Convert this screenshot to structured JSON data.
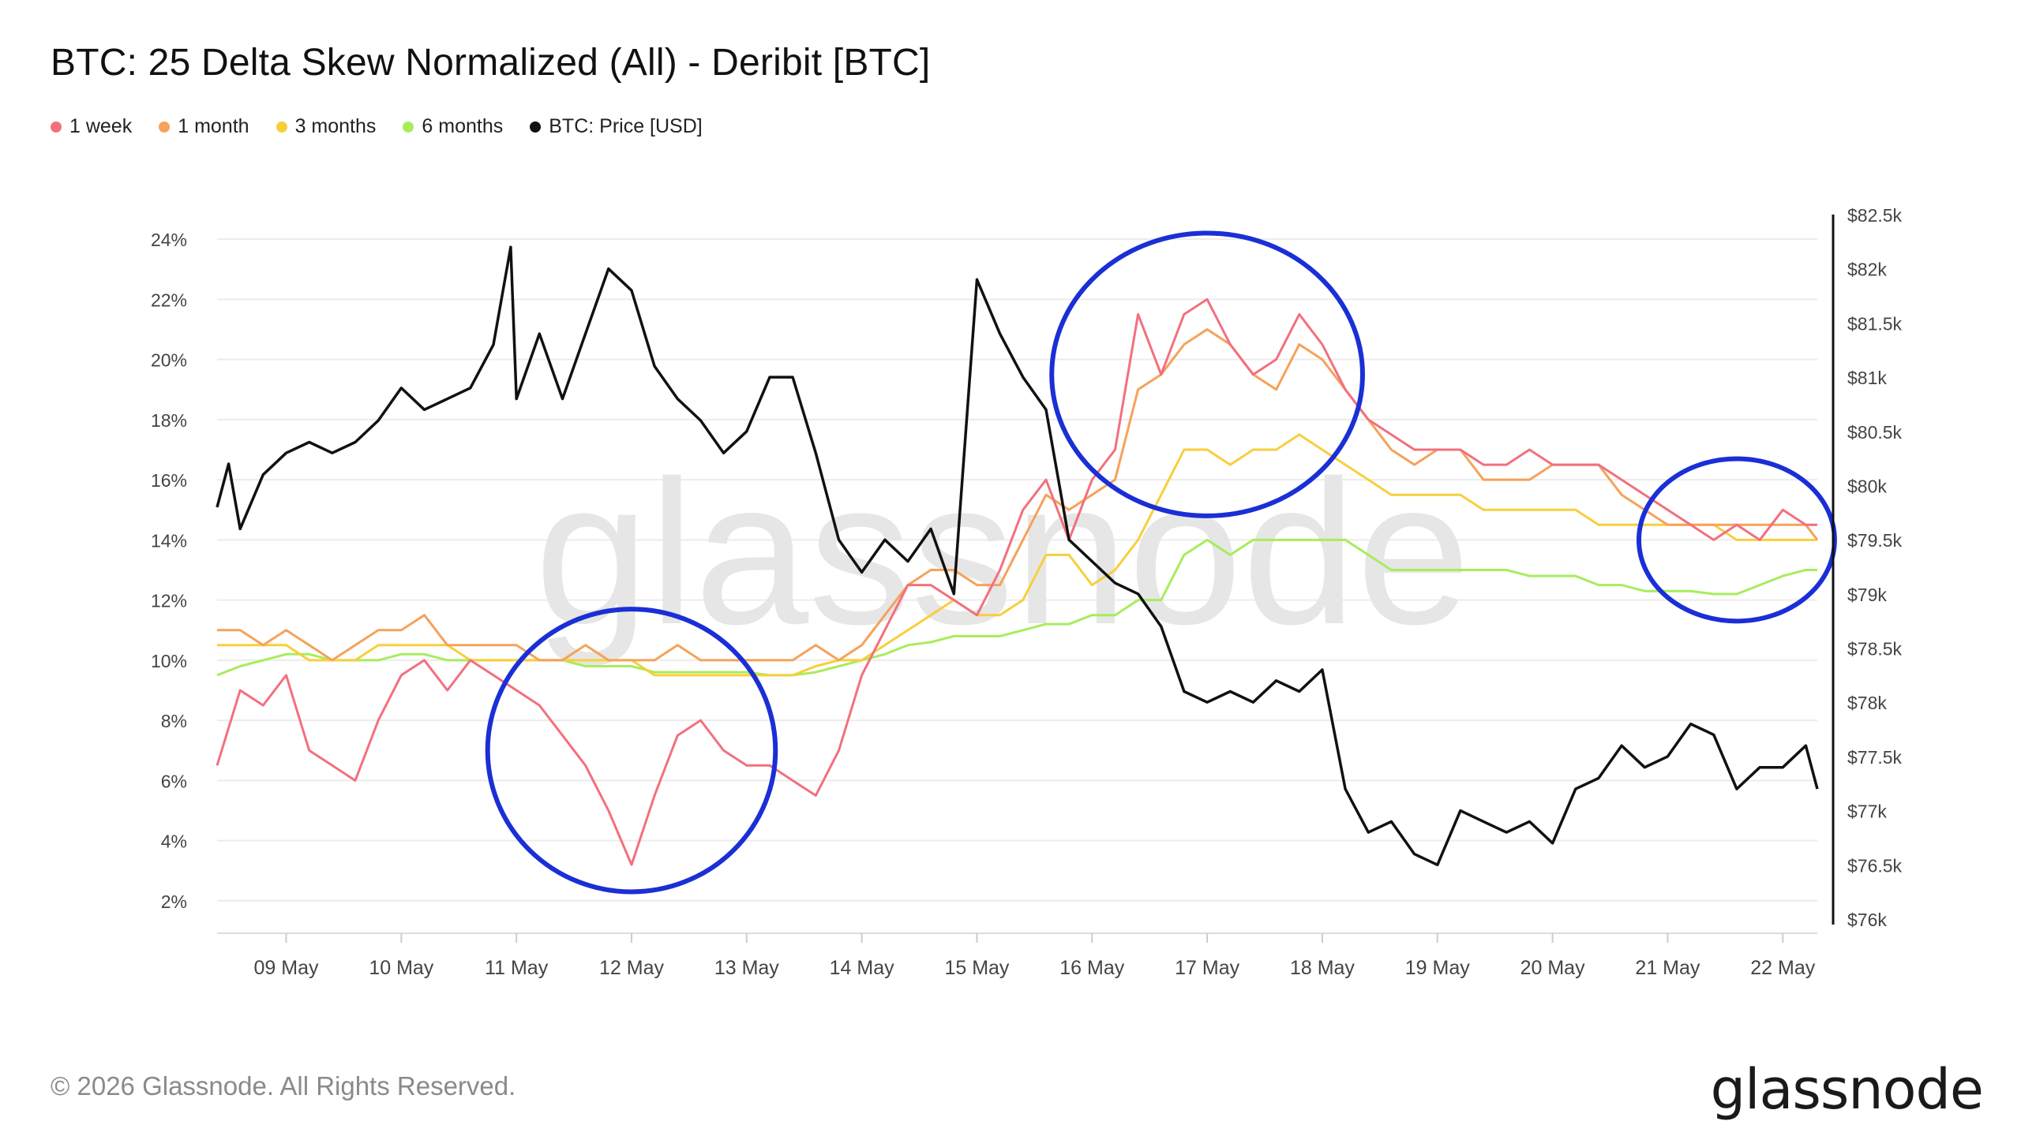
{
  "chart_data": {
    "type": "line",
    "title": "BTC: 25 Delta Skew Normalized (All) - Deribit [BTC]",
    "watermark": "glassnode",
    "grid": "horizontal",
    "legend_placement": "top-left",
    "x_ticks": [
      "09 May",
      "10 May",
      "11 May",
      "12 May",
      "13 May",
      "14 May",
      "15 May",
      "16 May",
      "17 May",
      "18 May",
      "19 May",
      "20 May",
      "21 May",
      "22 May"
    ],
    "x_range": [
      8.4,
      22.3
    ],
    "y_left": {
      "range": [
        1.0,
        25.0
      ],
      "ticks": [
        2,
        4,
        6,
        8,
        10,
        12,
        14,
        16,
        18,
        20,
        22,
        24
      ],
      "tick_labels": [
        "2%",
        "4%",
        "6%",
        "8%",
        "10%",
        "12%",
        "14%",
        "16%",
        "18%",
        "20%",
        "22%",
        "24%"
      ]
    },
    "y_right": {
      "range": [
        76000,
        82500
      ],
      "ticks": [
        76000,
        76500,
        77000,
        77500,
        78000,
        78500,
        79000,
        79500,
        80000,
        80500,
        81000,
        81500,
        82000,
        82500
      ],
      "tick_labels": [
        "$76k",
        "$76.5k",
        "$77k",
        "$77.5k",
        "$78k",
        "$78.5k",
        "$79k",
        "$79.5k",
        "$80k",
        "$80.5k",
        "$81k",
        "$81.5k",
        "$82k",
        "$82.5k"
      ]
    },
    "series": [
      {
        "name": "1 week",
        "color": "#f2707e",
        "axis": "left",
        "x": [
          8.4,
          8.6,
          8.8,
          9.0,
          9.2,
          9.4,
          9.6,
          9.8,
          10.0,
          10.2,
          10.4,
          10.6,
          10.8,
          11.0,
          11.2,
          11.4,
          11.6,
          11.8,
          12.0,
          12.2,
          12.4,
          12.6,
          12.8,
          13.0,
          13.2,
          13.4,
          13.6,
          13.8,
          14.0,
          14.2,
          14.4,
          14.6,
          14.8,
          15.0,
          15.2,
          15.4,
          15.6,
          15.8,
          16.0,
          16.2,
          16.4,
          16.6,
          16.8,
          17.0,
          17.2,
          17.4,
          17.6,
          17.8,
          18.0,
          18.2,
          18.4,
          18.6,
          18.8,
          19.0,
          19.2,
          19.4,
          19.6,
          19.8,
          20.0,
          20.2,
          20.4,
          20.6,
          20.8,
          21.0,
          21.2,
          21.4,
          21.6,
          21.8,
          22.0,
          22.2,
          22.3
        ],
        "y": [
          6.5,
          9.0,
          8.5,
          9.5,
          7.0,
          6.5,
          6.0,
          8.0,
          9.5,
          10.0,
          9.0,
          10.0,
          9.5,
          9.0,
          8.5,
          7.5,
          6.5,
          5.0,
          3.2,
          5.5,
          7.5,
          8.0,
          7.0,
          6.5,
          6.5,
          6.0,
          5.5,
          7.0,
          9.5,
          11.0,
          12.5,
          12.5,
          12.0,
          11.5,
          13.0,
          15.0,
          16.0,
          14.0,
          16.0,
          17.0,
          21.5,
          19.5,
          21.5,
          22.0,
          20.5,
          19.5,
          20.0,
          21.5,
          20.5,
          19.0,
          18.0,
          17.5,
          17.0,
          17.0,
          17.0,
          16.5,
          16.5,
          17.0,
          16.5,
          16.5,
          16.5,
          16.0,
          15.5,
          15.0,
          14.5,
          14.0,
          14.5,
          14.0,
          15.0,
          14.5,
          14.5
        ]
      },
      {
        "name": "1 month",
        "color": "#f5a25a",
        "axis": "left",
        "x": [
          8.4,
          8.6,
          8.8,
          9.0,
          9.2,
          9.4,
          9.6,
          9.8,
          10.0,
          10.2,
          10.4,
          10.6,
          10.8,
          11.0,
          11.2,
          11.4,
          11.6,
          11.8,
          12.0,
          12.2,
          12.4,
          12.6,
          12.8,
          13.0,
          13.2,
          13.4,
          13.6,
          13.8,
          14.0,
          14.2,
          14.4,
          14.6,
          14.8,
          15.0,
          15.2,
          15.4,
          15.6,
          15.8,
          16.0,
          16.2,
          16.4,
          16.6,
          16.8,
          17.0,
          17.2,
          17.4,
          17.6,
          17.8,
          18.0,
          18.2,
          18.4,
          18.6,
          18.8,
          19.0,
          19.2,
          19.4,
          19.6,
          19.8,
          20.0,
          20.2,
          20.4,
          20.6,
          20.8,
          21.0,
          21.2,
          21.4,
          21.6,
          21.8,
          22.0,
          22.2,
          22.3
        ],
        "y": [
          11.0,
          11.0,
          10.5,
          11.0,
          10.5,
          10.0,
          10.5,
          11.0,
          11.0,
          11.5,
          10.5,
          10.5,
          10.5,
          10.5,
          10.0,
          10.0,
          10.5,
          10.0,
          10.0,
          10.0,
          10.5,
          10.0,
          10.0,
          10.0,
          10.0,
          10.0,
          10.5,
          10.0,
          10.5,
          11.5,
          12.5,
          13.0,
          13.0,
          12.5,
          12.5,
          14.0,
          15.5,
          15.0,
          15.5,
          16.0,
          19.0,
          19.5,
          20.5,
          21.0,
          20.5,
          19.5,
          19.0,
          20.5,
          20.0,
          19.0,
          18.0,
          17.0,
          16.5,
          17.0,
          17.0,
          16.0,
          16.0,
          16.0,
          16.5,
          16.5,
          16.5,
          15.5,
          15.0,
          14.5,
          14.5,
          14.5,
          14.5,
          14.5,
          14.5,
          14.5,
          14.0
        ]
      },
      {
        "name": "3 months",
        "color": "#f7cf3c",
        "axis": "left",
        "x": [
          8.4,
          8.6,
          8.8,
          9.0,
          9.2,
          9.4,
          9.6,
          9.8,
          10.0,
          10.2,
          10.4,
          10.6,
          10.8,
          11.0,
          11.2,
          11.4,
          11.6,
          11.8,
          12.0,
          12.2,
          12.4,
          12.6,
          12.8,
          13.0,
          13.2,
          13.4,
          13.6,
          13.8,
          14.0,
          14.2,
          14.4,
          14.6,
          14.8,
          15.0,
          15.2,
          15.4,
          15.6,
          15.8,
          16.0,
          16.2,
          16.4,
          16.6,
          16.8,
          17.0,
          17.2,
          17.4,
          17.6,
          17.8,
          18.0,
          18.2,
          18.4,
          18.6,
          18.8,
          19.0,
          19.2,
          19.4,
          19.6,
          19.8,
          20.0,
          20.2,
          20.4,
          20.6,
          20.8,
          21.0,
          21.2,
          21.4,
          21.6,
          21.8,
          22.0,
          22.2,
          22.3
        ],
        "y": [
          10.5,
          10.5,
          10.5,
          10.5,
          10.0,
          10.0,
          10.0,
          10.5,
          10.5,
          10.5,
          10.5,
          10.0,
          10.0,
          10.0,
          10.0,
          10.0,
          10.0,
          10.0,
          10.0,
          9.5,
          9.5,
          9.5,
          9.5,
          9.5,
          9.5,
          9.5,
          9.8,
          10.0,
          10.0,
          10.5,
          11.0,
          11.5,
          12.0,
          11.5,
          11.5,
          12.0,
          13.5,
          13.5,
          12.5,
          13.0,
          14.0,
          15.5,
          17.0,
          17.0,
          16.5,
          17.0,
          17.0,
          17.5,
          17.0,
          16.5,
          16.0,
          15.5,
          15.5,
          15.5,
          15.5,
          15.0,
          15.0,
          15.0,
          15.0,
          15.0,
          14.5,
          14.5,
          14.5,
          14.5,
          14.5,
          14.5,
          14.0,
          14.0,
          14.0,
          14.0,
          14.0
        ]
      },
      {
        "name": "6 months",
        "color": "#a8ec5c",
        "axis": "left",
        "x": [
          8.4,
          8.6,
          8.8,
          9.0,
          9.2,
          9.4,
          9.6,
          9.8,
          10.0,
          10.2,
          10.4,
          10.6,
          10.8,
          11.0,
          11.2,
          11.4,
          11.6,
          11.8,
          12.0,
          12.2,
          12.4,
          12.6,
          12.8,
          13.0,
          13.2,
          13.4,
          13.6,
          13.8,
          14.0,
          14.2,
          14.4,
          14.6,
          14.8,
          15.0,
          15.2,
          15.4,
          15.6,
          15.8,
          16.0,
          16.2,
          16.4,
          16.6,
          16.8,
          17.0,
          17.2,
          17.4,
          17.6,
          17.8,
          18.0,
          18.2,
          18.4,
          18.6,
          18.8,
          19.0,
          19.2,
          19.4,
          19.6,
          19.8,
          20.0,
          20.2,
          20.4,
          20.6,
          20.8,
          21.0,
          21.2,
          21.4,
          21.6,
          21.8,
          22.0,
          22.2,
          22.3
        ],
        "y": [
          9.5,
          9.8,
          10.0,
          10.2,
          10.2,
          10.0,
          10.0,
          10.0,
          10.2,
          10.2,
          10.0,
          10.0,
          10.0,
          10.0,
          10.0,
          10.0,
          9.8,
          9.8,
          9.8,
          9.6,
          9.6,
          9.6,
          9.6,
          9.6,
          9.5,
          9.5,
          9.6,
          9.8,
          10.0,
          10.2,
          10.5,
          10.6,
          10.8,
          10.8,
          10.8,
          11.0,
          11.2,
          11.2,
          11.5,
          11.5,
          12.0,
          12.0,
          13.5,
          14.0,
          13.5,
          14.0,
          14.0,
          14.0,
          14.0,
          14.0,
          13.5,
          13.0,
          13.0,
          13.0,
          13.0,
          13.0,
          13.0,
          12.8,
          12.8,
          12.8,
          12.5,
          12.5,
          12.3,
          12.3,
          12.3,
          12.2,
          12.2,
          12.5,
          12.8,
          13.0,
          13.0
        ]
      },
      {
        "name": "BTC: Price [USD]",
        "color": "#111111",
        "axis": "right",
        "x": [
          8.4,
          8.5,
          8.6,
          8.8,
          9.0,
          9.2,
          9.4,
          9.6,
          9.8,
          10.0,
          10.2,
          10.4,
          10.6,
          10.8,
          10.95,
          11.0,
          11.2,
          11.4,
          11.6,
          11.8,
          12.0,
          12.2,
          12.4,
          12.6,
          12.8,
          13.0,
          13.2,
          13.4,
          13.6,
          13.8,
          14.0,
          14.2,
          14.4,
          14.6,
          14.7,
          14.8,
          15.0,
          15.2,
          15.4,
          15.6,
          15.8,
          16.0,
          16.2,
          16.4,
          16.6,
          16.8,
          17.0,
          17.2,
          17.4,
          17.6,
          17.8,
          18.0,
          18.2,
          18.4,
          18.6,
          18.8,
          19.0,
          19.2,
          19.4,
          19.6,
          19.8,
          20.0,
          20.2,
          20.4,
          20.6,
          20.8,
          21.0,
          21.2,
          21.4,
          21.6,
          21.8,
          22.0,
          22.2,
          22.3
        ],
        "y": [
          79800,
          80200,
          79600,
          80100,
          80300,
          80400,
          80300,
          80400,
          80600,
          80900,
          80700,
          80800,
          80900,
          81300,
          82200,
          80800,
          81400,
          80800,
          81400,
          82000,
          81800,
          81100,
          80800,
          80600,
          80300,
          80500,
          81000,
          81000,
          80300,
          79500,
          79200,
          79500,
          79300,
          79600,
          79300,
          79000,
          81900,
          81400,
          81000,
          80700,
          79500,
          79300,
          79100,
          79000,
          78700,
          78100,
          78000,
          78100,
          78000,
          78200,
          78100,
          78300,
          77200,
          76800,
          76900,
          76600,
          76500,
          77000,
          76900,
          76800,
          76900,
          76700,
          77200,
          77300,
          77600,
          77400,
          77500,
          77800,
          77700,
          77200,
          77400,
          77400,
          77600,
          77200
        ]
      }
    ],
    "annotations": [
      {
        "type": "circle",
        "color": "#1a2fd6",
        "cx": 12.0,
        "cy": 7.0,
        "rx": 1.25,
        "ry": 4.7
      },
      {
        "type": "circle",
        "color": "#1a2fd6",
        "cx": 17.0,
        "cy": 19.5,
        "rx": 1.35,
        "ry": 4.7
      },
      {
        "type": "circle",
        "color": "#1a2fd6",
        "cx": 21.6,
        "cy": 14.0,
        "rx": 0.85,
        "ry": 2.7
      }
    ]
  },
  "legend": [
    {
      "label": "1 week",
      "color": "#f2707e"
    },
    {
      "label": "1 month",
      "color": "#f5a25a"
    },
    {
      "label": "3 months",
      "color": "#f7cf3c"
    },
    {
      "label": "6 months",
      "color": "#a8ec5c"
    },
    {
      "label": "BTC: Price [USD]",
      "color": "#111111"
    }
  ],
  "footer": {
    "copyright": "© 2026 Glassnode. All Rights Reserved.",
    "brand": "glassnode"
  }
}
